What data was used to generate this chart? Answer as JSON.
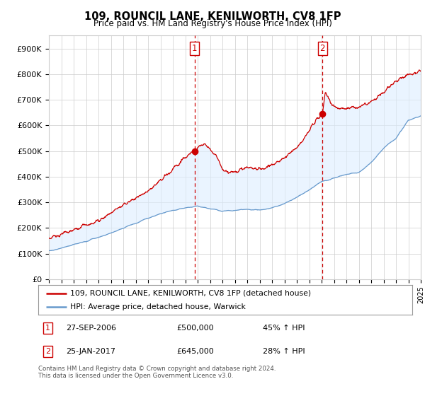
{
  "title": "109, ROUNCIL LANE, KENILWORTH, CV8 1FP",
  "subtitle": "Price paid vs. HM Land Registry's House Price Index (HPI)",
  "ylim": [
    0,
    950000
  ],
  "yticks": [
    0,
    100000,
    200000,
    300000,
    400000,
    500000,
    600000,
    700000,
    800000,
    900000
  ],
  "ytick_labels": [
    "£0",
    "£100K",
    "£200K",
    "£300K",
    "£400K",
    "£500K",
    "£600K",
    "£700K",
    "£800K",
    "£900K"
  ],
  "sale1_date_label": "27-SEP-2006",
  "sale1_price": 500000,
  "sale1_pct": "45% ↑ HPI",
  "sale2_date_label": "25-JAN-2017",
  "sale2_price": 645000,
  "sale2_pct": "28% ↑ HPI",
  "legend_line1": "109, ROUNCIL LANE, KENILWORTH, CV8 1FP (detached house)",
  "legend_line2": "HPI: Average price, detached house, Warwick",
  "footer": "Contains HM Land Registry data © Crown copyright and database right 2024.\nThis data is licensed under the Open Government Licence v3.0.",
  "line_color_red": "#cc0000",
  "line_color_blue": "#6699cc",
  "shade_color": "#ddeeff",
  "marker_box_color": "#cc0000",
  "grid_color": "#cccccc",
  "background_color": "#ffffff",
  "sale1_x": 2006.75,
  "sale2_x": 2017.07,
  "xlim_left": 1995,
  "xlim_right": 2025
}
